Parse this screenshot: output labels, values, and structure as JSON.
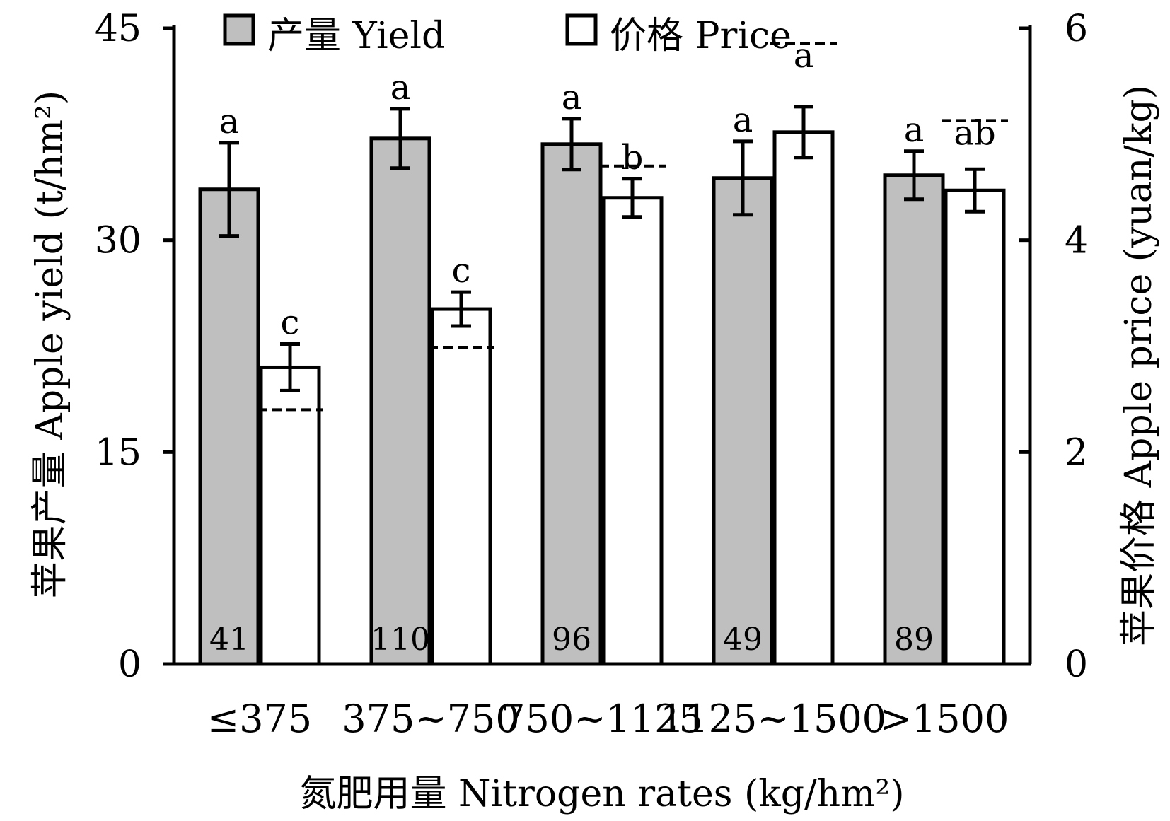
{
  "chart_data": {
    "type": "bar",
    "xlabel": "氮肥用量 Nitrogen rates (kg/hm²)",
    "ylabel_left": "苹果产量 Apple yield (t/hm²)",
    "ylabel_right": "苹果价格 Apple price (yuan/kg)",
    "categories": [
      "≤375",
      "375~750",
      "750~1125",
      "1125~1500",
      ">1500"
    ],
    "sample_sizes": [
      "41",
      "110",
      "96",
      "49",
      "89"
    ],
    "ylim_left": [
      0,
      45
    ],
    "yticks_left": [
      0,
      15,
      30,
      45
    ],
    "ylim_right": [
      0,
      6
    ],
    "yticks_right": [
      0,
      2,
      4,
      6
    ],
    "grid": false,
    "legend_position": "top",
    "series": [
      {
        "name": "产量 Yield",
        "axis": "left",
        "fill": "#bfbfbf",
        "values": [
          33.6,
          37.2,
          36.8,
          34.4,
          34.6
        ],
        "errors": [
          3.3,
          2.1,
          1.8,
          2.6,
          1.7
        ],
        "letters": [
          "a",
          "a",
          "a",
          "a",
          "a"
        ]
      },
      {
        "name": "价格 Price",
        "axis": "right",
        "fill": "#ffffff",
        "values": [
          2.8,
          3.35,
          4.4,
          5.02,
          4.47
        ],
        "errors": [
          0.22,
          0.16,
          0.18,
          0.24,
          0.2
        ],
        "letters": [
          "c",
          "c",
          "b",
          "a",
          "ab"
        ],
        "dashed_reference": [
          2.4,
          2.99,
          4.7,
          5.86,
          5.13
        ]
      }
    ]
  }
}
